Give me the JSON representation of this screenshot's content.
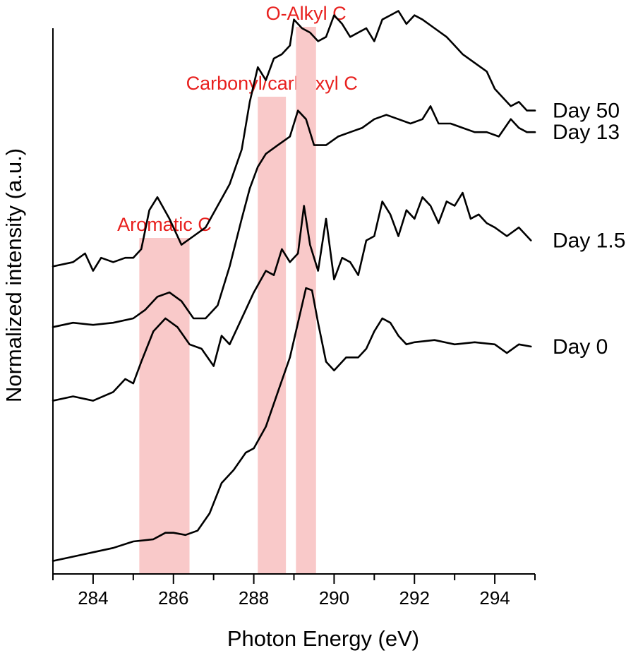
{
  "chart_data": {
    "type": "line",
    "title": "",
    "xlabel": "Photon Energy (eV)",
    "ylabel": "Normalized intensity (a.u.)",
    "xlim": [
      283,
      295
    ],
    "ylim": [
      0,
      12.6
    ],
    "xticks": [
      284,
      286,
      288,
      290,
      292,
      294
    ],
    "highlight_color": "#f9c9c9",
    "annotation_color": "#e8201e",
    "line_color": "#000000",
    "bands": [
      {
        "label": "Aromatic C",
        "x0": 285.15,
        "x1": 286.4
      },
      {
        "label": "Carbonyl/carboxyl C",
        "x0": 288.1,
        "x1": 288.8
      },
      {
        "label": "O-Alkyl C",
        "x0": 289.05,
        "x1": 289.55
      }
    ],
    "series": [
      {
        "name": "Day 0",
        "label": "Day 0",
        "x": [
          283.0,
          283.5,
          284.0,
          284.5,
          285.0,
          285.5,
          285.8,
          286.0,
          286.3,
          286.6,
          286.9,
          287.2,
          287.5,
          287.8,
          288.0,
          288.3,
          288.6,
          288.9,
          289.1,
          289.3,
          289.45,
          289.6,
          289.8,
          290.0,
          290.3,
          290.6,
          290.8,
          291.0,
          291.2,
          291.4,
          291.6,
          291.8,
          292.0,
          292.5,
          293.0,
          293.5,
          294.0,
          294.3,
          294.6,
          294.9
        ],
        "y": [
          0.3,
          0.4,
          0.5,
          0.6,
          0.75,
          0.8,
          0.95,
          0.95,
          0.9,
          1.0,
          1.4,
          2.1,
          2.4,
          2.8,
          2.9,
          3.4,
          4.2,
          5.0,
          5.8,
          6.6,
          6.55,
          5.8,
          4.9,
          4.7,
          5.0,
          5.0,
          5.2,
          5.6,
          5.9,
          5.8,
          5.5,
          5.3,
          5.35,
          5.4,
          5.3,
          5.35,
          5.3,
          5.1,
          5.3,
          5.25
        ]
      },
      {
        "name": "Day 1.5",
        "label": "Day 1.5",
        "x": [
          283.0,
          283.5,
          284.0,
          284.5,
          284.8,
          285.0,
          285.2,
          285.5,
          285.8,
          286.1,
          286.4,
          286.7,
          287.0,
          287.2,
          287.4,
          287.6,
          287.8,
          288.0,
          288.3,
          288.5,
          288.7,
          288.9,
          289.1,
          289.25,
          289.4,
          289.6,
          289.8,
          290.0,
          290.2,
          290.4,
          290.6,
          290.8,
          291.0,
          291.2,
          291.4,
          291.6,
          291.8,
          292.0,
          292.2,
          292.4,
          292.6,
          292.8,
          293.0,
          293.2,
          293.4,
          293.6,
          293.8,
          294.0,
          294.3,
          294.6,
          294.9
        ],
        "y": [
          4.0,
          4.1,
          4.0,
          4.2,
          4.5,
          4.4,
          4.9,
          5.6,
          5.9,
          5.7,
          5.3,
          5.2,
          4.8,
          5.5,
          5.3,
          5.7,
          6.1,
          6.5,
          7.0,
          6.9,
          7.5,
          7.2,
          7.4,
          8.5,
          7.6,
          7.0,
          8.2,
          6.8,
          7.3,
          7.2,
          6.9,
          7.7,
          7.8,
          8.6,
          8.3,
          7.8,
          8.4,
          8.2,
          8.7,
          8.5,
          8.1,
          8.6,
          8.5,
          8.8,
          8.2,
          8.3,
          8.1,
          8.0,
          7.8,
          8.0,
          7.7
        ]
      },
      {
        "name": "Day 13",
        "label": "Day 13",
        "x": [
          283.0,
          283.5,
          284.0,
          284.5,
          285.0,
          285.3,
          285.6,
          285.9,
          286.2,
          286.5,
          286.8,
          287.1,
          287.4,
          287.7,
          287.9,
          288.1,
          288.3,
          288.6,
          288.9,
          289.1,
          289.3,
          289.5,
          289.8,
          290.1,
          290.4,
          290.7,
          291.0,
          291.3,
          291.6,
          291.9,
          292.2,
          292.4,
          292.6,
          292.9,
          293.2,
          293.5,
          293.8,
          294.1,
          294.4,
          294.6,
          294.8,
          295.0
        ],
        "y": [
          5.7,
          5.8,
          5.75,
          5.8,
          5.9,
          6.1,
          6.4,
          6.5,
          6.3,
          5.9,
          5.9,
          6.2,
          7.1,
          8.2,
          8.9,
          9.4,
          9.7,
          9.9,
          10.1,
          10.7,
          10.5,
          9.9,
          9.9,
          10.1,
          10.2,
          10.3,
          10.5,
          10.6,
          10.5,
          10.4,
          10.5,
          10.8,
          10.4,
          10.4,
          10.3,
          10.2,
          10.2,
          10.1,
          10.5,
          10.3,
          10.2,
          10.2
        ]
      },
      {
        "name": "Day 50",
        "label": "Day 50",
        "x": [
          283.0,
          283.5,
          283.8,
          284.0,
          284.2,
          284.5,
          284.8,
          285.0,
          285.2,
          285.4,
          285.6,
          285.9,
          286.2,
          286.5,
          286.8,
          287.1,
          287.4,
          287.7,
          287.9,
          288.1,
          288.3,
          288.5,
          288.7,
          288.9,
          289.0,
          289.2,
          289.4,
          289.6,
          289.8,
          290.0,
          290.2,
          290.4,
          290.6,
          290.8,
          291.0,
          291.2,
          291.4,
          291.6,
          291.8,
          292.0,
          292.2,
          292.5,
          292.8,
          293.0,
          293.2,
          293.5,
          293.8,
          294.0,
          294.2,
          294.4,
          294.6,
          294.8,
          295.0
        ],
        "y": [
          7.1,
          7.2,
          7.4,
          7.0,
          7.3,
          7.2,
          7.3,
          7.3,
          7.5,
          8.4,
          8.7,
          8.2,
          7.6,
          7.8,
          8.0,
          8.5,
          9.0,
          9.8,
          10.9,
          11.7,
          11.4,
          11.9,
          12.0,
          12.2,
          12.8,
          12.6,
          12.5,
          12.3,
          12.4,
          12.9,
          12.7,
          12.4,
          12.5,
          12.6,
          12.3,
          12.8,
          12.9,
          13.0,
          12.7,
          12.9,
          12.8,
          12.6,
          12.4,
          12.2,
          12.0,
          11.8,
          11.6,
          11.2,
          11.0,
          10.8,
          10.9,
          10.7,
          10.7
        ]
      }
    ]
  }
}
